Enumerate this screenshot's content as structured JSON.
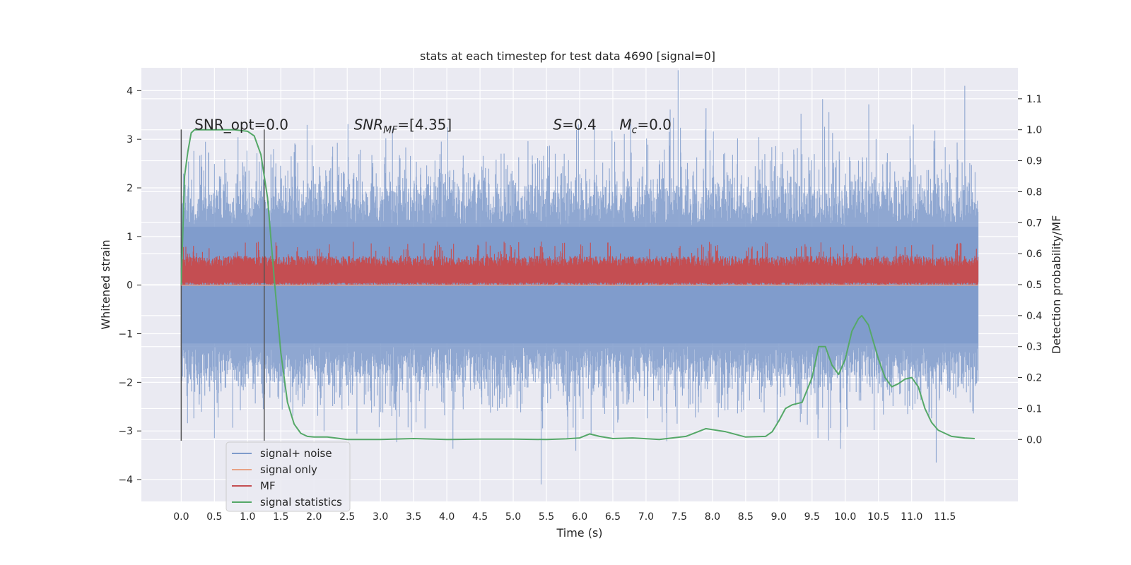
{
  "chart_data": {
    "type": "line",
    "title": "stats at each timestep for test data 4690 [signal=0]",
    "xlabel": "Time (s)",
    "ylabel": "Whitened strain",
    "ylabel_right": "Detection probability/MF",
    "xlim": [
      -0.6,
      12.6
    ],
    "ylim": [
      -4.45,
      4.47
    ],
    "ylim_right": [
      -0.2,
      1.2
    ],
    "x_ticks": [
      0.0,
      0.5,
      1.0,
      1.5,
      2.0,
      2.5,
      3.0,
      3.5,
      4.0,
      4.5,
      5.0,
      5.5,
      6.0,
      6.5,
      7.0,
      7.5,
      8.0,
      8.5,
      9.0,
      9.5,
      10.0,
      10.5,
      11.0,
      11.5
    ],
    "x_tick_labels": [
      "0.0",
      "0.5",
      "1.0",
      "1.5",
      "2.0",
      "2.5",
      "3.0",
      "3.5",
      "4.0",
      "4.5",
      "5.0",
      "5.5",
      "6.0",
      "6.5",
      "7.0",
      "7.5",
      "8.0",
      "8.5",
      "9.0",
      "9.5",
      "10.0",
      "10.5",
      "11.0",
      "11.5"
    ],
    "y_ticks": [
      -4,
      -3,
      -2,
      -1,
      0,
      1,
      2,
      3,
      4
    ],
    "y_tick_labels": [
      "−4",
      "−3",
      "−2",
      "−1",
      "0",
      "1",
      "2",
      "3",
      "4"
    ],
    "y_right_ticks": [
      0.0,
      0.1,
      0.2,
      0.3,
      0.4,
      0.5,
      0.6,
      0.7,
      0.8,
      0.9,
      1.0,
      1.1
    ],
    "y_right_tick_labels": [
      "0.0",
      "0.1",
      "0.2",
      "0.3",
      "0.4",
      "0.5",
      "0.6",
      "0.7",
      "0.8",
      "0.9",
      "1.0",
      "1.1"
    ],
    "grid": true,
    "legend_position": "bottom-left",
    "series": [
      {
        "name": "signal+ noise",
        "color": "#7f9bcb",
        "axis": "left",
        "x_range": [
          0.0,
          12.0
        ],
        "typical_amplitude": 1.2,
        "notable_peaks": [
          {
            "x": 5.42,
            "y": -4.1
          },
          {
            "x": 11.37,
            "y": -3.65
          },
          {
            "x": 11.8,
            "y": 4.1
          },
          {
            "x": 0.5,
            "y": -3.15
          }
        ]
      },
      {
        "name": "signal only",
        "color": "#e8a285",
        "axis": "left",
        "x": [
          0.0,
          12.0
        ],
        "y": [
          0.0,
          0.0
        ]
      },
      {
        "name": "MF",
        "color": "#c44e52",
        "axis": "left",
        "x_range": [
          0.0,
          12.0
        ],
        "band": [
          0.0,
          0.6
        ],
        "peak_max": 0.9
      },
      {
        "name": "signal statistics",
        "color": "#55a868",
        "axis": "right",
        "x": [
          0.0,
          0.05,
          0.1,
          0.15,
          0.2,
          0.3,
          0.5,
          0.8,
          1.0,
          1.1,
          1.2,
          1.3,
          1.4,
          1.5,
          1.6,
          1.7,
          1.8,
          1.9,
          2.0,
          2.2,
          2.5,
          3.0,
          3.5,
          4.0,
          4.5,
          5.0,
          5.5,
          5.8,
          6.0,
          6.15,
          6.3,
          6.5,
          6.8,
          7.2,
          7.6,
          7.9,
          8.2,
          8.5,
          8.8,
          8.9,
          9.0,
          9.1,
          9.2,
          9.35,
          9.5,
          9.6,
          9.7,
          9.8,
          9.9,
          10.0,
          10.1,
          10.2,
          10.25,
          10.35,
          10.5,
          10.6,
          10.7,
          10.8,
          10.9,
          11.0,
          11.1,
          11.2,
          11.3,
          11.4,
          11.6,
          11.8,
          11.95
        ],
        "y": [
          0.5,
          0.85,
          0.93,
          0.99,
          1.0,
          1.0,
          1.0,
          1.0,
          0.995,
          0.98,
          0.92,
          0.78,
          0.52,
          0.28,
          0.12,
          0.05,
          0.02,
          0.01,
          0.008,
          0.008,
          0.0,
          0.0,
          0.003,
          0.0,
          0.001,
          0.001,
          0.0,
          0.002,
          0.005,
          0.018,
          0.01,
          0.003,
          0.005,
          0.0,
          0.01,
          0.035,
          0.025,
          0.008,
          0.01,
          0.025,
          0.06,
          0.1,
          0.112,
          0.12,
          0.2,
          0.3,
          0.3,
          0.24,
          0.21,
          0.26,
          0.35,
          0.39,
          0.4,
          0.37,
          0.26,
          0.2,
          0.17,
          0.18,
          0.195,
          0.2,
          0.17,
          0.1,
          0.055,
          0.03,
          0.01,
          0.005,
          0.003
        ]
      }
    ],
    "vertical_lines": [
      0.0,
      1.25
    ],
    "vertical_line_range": [
      -3.2,
      3.2
    ],
    "annotations": [
      {
        "text": "SNR_opt=0.0",
        "x": 0.2,
        "y": 3.3
      },
      {
        "text": "SNR_MF=[4.35]",
        "x": 2.6,
        "y": 3.3
      },
      {
        "text": "S=0.4",
        "x": 5.6,
        "y": 3.3
      },
      {
        "text": "M_c=0.0",
        "x": 6.6,
        "y": 3.3
      }
    ]
  }
}
